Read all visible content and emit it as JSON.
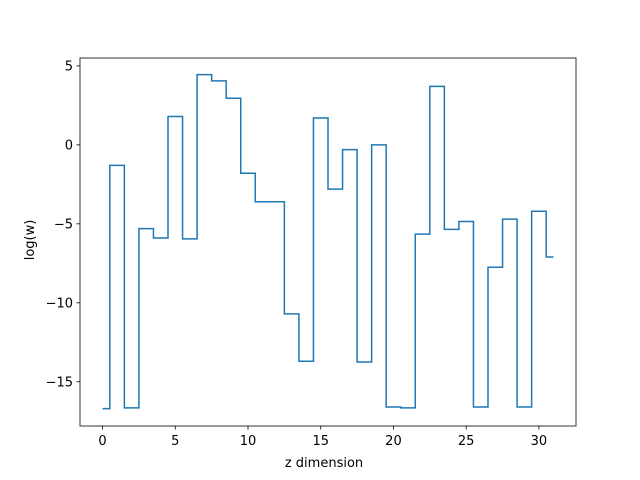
{
  "chart_data": {
    "type": "line",
    "drawstyle": "steps-mid",
    "title": "",
    "xlabel": "z dimension",
    "ylabel": "log(w)",
    "xlim": [
      -1.55,
      32.55
    ],
    "ylim": [
      -17.8,
      5.5
    ],
    "xticks": [
      0,
      5,
      10,
      15,
      20,
      25,
      30
    ],
    "yticks": [
      5,
      0,
      -5,
      -10,
      -15
    ],
    "ytick_labels": [
      "5",
      "0",
      "−5",
      "−10",
      "−15"
    ],
    "grid": false,
    "legend": "none",
    "line_color": "#1f77b4",
    "x": [
      0,
      1,
      2,
      3,
      4,
      5,
      6,
      7,
      8,
      9,
      10,
      11,
      12,
      13,
      14,
      15,
      16,
      17,
      18,
      19,
      20,
      21,
      22,
      23,
      24,
      25,
      26,
      27,
      28,
      29,
      30,
      31
    ],
    "values": [
      -16.7,
      -1.3,
      -16.65,
      -5.3,
      -5.9,
      1.8,
      -5.95,
      4.45,
      4.05,
      2.95,
      -1.8,
      -3.6,
      -3.6,
      -10.7,
      -13.7,
      1.7,
      -2.8,
      -0.3,
      -13.75,
      0.0,
      -16.6,
      -16.65,
      -5.65,
      3.7,
      -5.35,
      -4.85,
      -16.6,
      -7.75,
      -4.7,
      -16.6,
      -4.2,
      -7.1
    ]
  }
}
